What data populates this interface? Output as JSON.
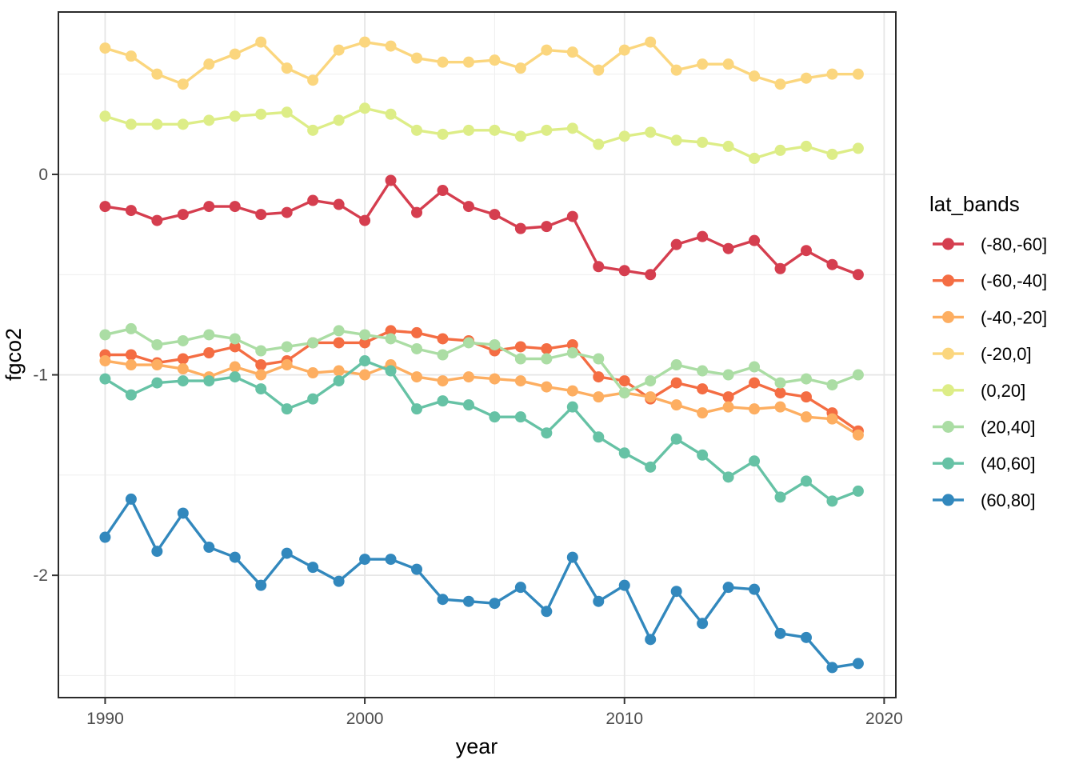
{
  "chart_data": {
    "type": "line",
    "title": "",
    "xlabel": "year",
    "ylabel": "fgco2",
    "legend_title": "lat_bands",
    "legend_position": "right",
    "grid": true,
    "xlim": [
      1988.2,
      2020.45
    ],
    "ylim": [
      -2.61,
      0.81
    ],
    "x_major_ticks": [
      1990,
      2000,
      2010,
      2020
    ],
    "x_tick_labels": [
      "1990",
      "2000",
      "2010",
      "2020"
    ],
    "x_minor_ticks": [
      1995,
      2005,
      2015
    ],
    "y_major_ticks": [
      0,
      -1,
      -2
    ],
    "y_tick_labels": [
      "0",
      "-1",
      "-2"
    ],
    "y_minor_ticks": [
      0.5,
      -0.5,
      -1.5,
      -2.5
    ],
    "x": [
      1990,
      1991,
      1992,
      1993,
      1994,
      1995,
      1996,
      1997,
      1998,
      1999,
      2000,
      2001,
      2002,
      2003,
      2004,
      2005,
      2006,
      2007,
      2008,
      2009,
      2010,
      2011,
      2012,
      2013,
      2014,
      2015,
      2016,
      2017,
      2018,
      2019
    ],
    "series": [
      {
        "name": "(-80,-60]",
        "color": "#D53E4F",
        "values": [
          -0.16,
          -0.18,
          -0.23,
          -0.2,
          -0.16,
          -0.16,
          -0.2,
          -0.19,
          -0.13,
          -0.15,
          -0.23,
          -0.03,
          -0.19,
          -0.08,
          -0.16,
          -0.2,
          -0.27,
          -0.26,
          -0.21,
          -0.46,
          -0.48,
          -0.5,
          -0.35,
          -0.31,
          -0.37,
          -0.33,
          -0.47,
          -0.38,
          -0.45,
          -0.5
        ]
      },
      {
        "name": "(-60,-40]",
        "color": "#F46D43",
        "values": [
          -0.9,
          -0.9,
          -0.94,
          -0.92,
          -0.89,
          -0.86,
          -0.95,
          -0.93,
          -0.84,
          -0.84,
          -0.84,
          -0.78,
          -0.79,
          -0.82,
          -0.83,
          -0.88,
          -0.86,
          -0.87,
          -0.85,
          -1.01,
          -1.03,
          -1.12,
          -1.04,
          -1.07,
          -1.11,
          -1.04,
          -1.09,
          -1.11,
          -1.19,
          -1.28
        ]
      },
      {
        "name": "(-40,-20]",
        "color": "#FDAE61",
        "values": [
          -0.93,
          -0.95,
          -0.95,
          -0.97,
          -1.01,
          -0.96,
          -1.0,
          -0.95,
          -0.99,
          -0.98,
          -1.0,
          -0.95,
          -1.01,
          -1.03,
          -1.01,
          -1.02,
          -1.03,
          -1.06,
          -1.08,
          -1.11,
          -1.09,
          -1.11,
          -1.15,
          -1.19,
          -1.16,
          -1.17,
          -1.16,
          -1.21,
          -1.22,
          -1.3
        ]
      },
      {
        "name": "(-20,0]",
        "color": "#FBD67E",
        "values": [
          0.63,
          0.59,
          0.5,
          0.45,
          0.55,
          0.6,
          0.66,
          0.53,
          0.47,
          0.62,
          0.66,
          0.64,
          0.58,
          0.56,
          0.56,
          0.57,
          0.53,
          0.62,
          0.61,
          0.52,
          0.62,
          0.66,
          0.52,
          0.55,
          0.55,
          0.49,
          0.45,
          0.48,
          0.5,
          0.5
        ]
      },
      {
        "name": "(0,20]",
        "color": "#DDED87",
        "values": [
          0.29,
          0.25,
          0.25,
          0.25,
          0.27,
          0.29,
          0.3,
          0.31,
          0.22,
          0.27,
          0.33,
          0.3,
          0.22,
          0.2,
          0.22,
          0.22,
          0.19,
          0.22,
          0.23,
          0.15,
          0.19,
          0.21,
          0.17,
          0.16,
          0.14,
          0.08,
          0.12,
          0.14,
          0.1,
          0.13
        ]
      },
      {
        "name": "(20,40]",
        "color": "#ABDDA4",
        "values": [
          -0.8,
          -0.77,
          -0.85,
          -0.83,
          -0.8,
          -0.82,
          -0.88,
          -0.86,
          -0.84,
          -0.78,
          -0.8,
          -0.82,
          -0.87,
          -0.9,
          -0.84,
          -0.85,
          -0.92,
          -0.92,
          -0.89,
          -0.92,
          -1.09,
          -1.03,
          -0.95,
          -0.98,
          -1.0,
          -0.96,
          -1.04,
          -1.02,
          -1.05,
          -1.0
        ]
      },
      {
        "name": "(40,60]",
        "color": "#66C2A5",
        "values": [
          -1.02,
          -1.1,
          -1.04,
          -1.03,
          -1.03,
          -1.01,
          -1.07,
          -1.17,
          -1.12,
          -1.03,
          -0.93,
          -0.98,
          -1.17,
          -1.13,
          -1.15,
          -1.21,
          -1.21,
          -1.29,
          -1.16,
          -1.31,
          -1.39,
          -1.46,
          -1.32,
          -1.4,
          -1.51,
          -1.43,
          -1.61,
          -1.53,
          -1.63,
          -1.58
        ]
      },
      {
        "name": "(60,80]",
        "color": "#3288BD",
        "values": [
          -1.81,
          -1.62,
          -1.88,
          -1.69,
          -1.86,
          -1.91,
          -2.05,
          -1.89,
          -1.96,
          -2.03,
          -1.92,
          -1.92,
          -1.97,
          -2.12,
          -2.13,
          -2.14,
          -2.06,
          -2.18,
          -1.91,
          -2.13,
          -2.05,
          -2.32,
          -2.08,
          -2.24,
          -2.06,
          -2.07,
          -2.29,
          -2.31,
          -2.46,
          -2.44
        ]
      }
    ]
  },
  "style_colors": {
    "panel_border": "#2b2b2b",
    "grid_major": "#e6e6e6",
    "grid_minor": "#f0f0f0",
    "tick_mark": "#333333",
    "tick_text": "#4d4d4d"
  }
}
